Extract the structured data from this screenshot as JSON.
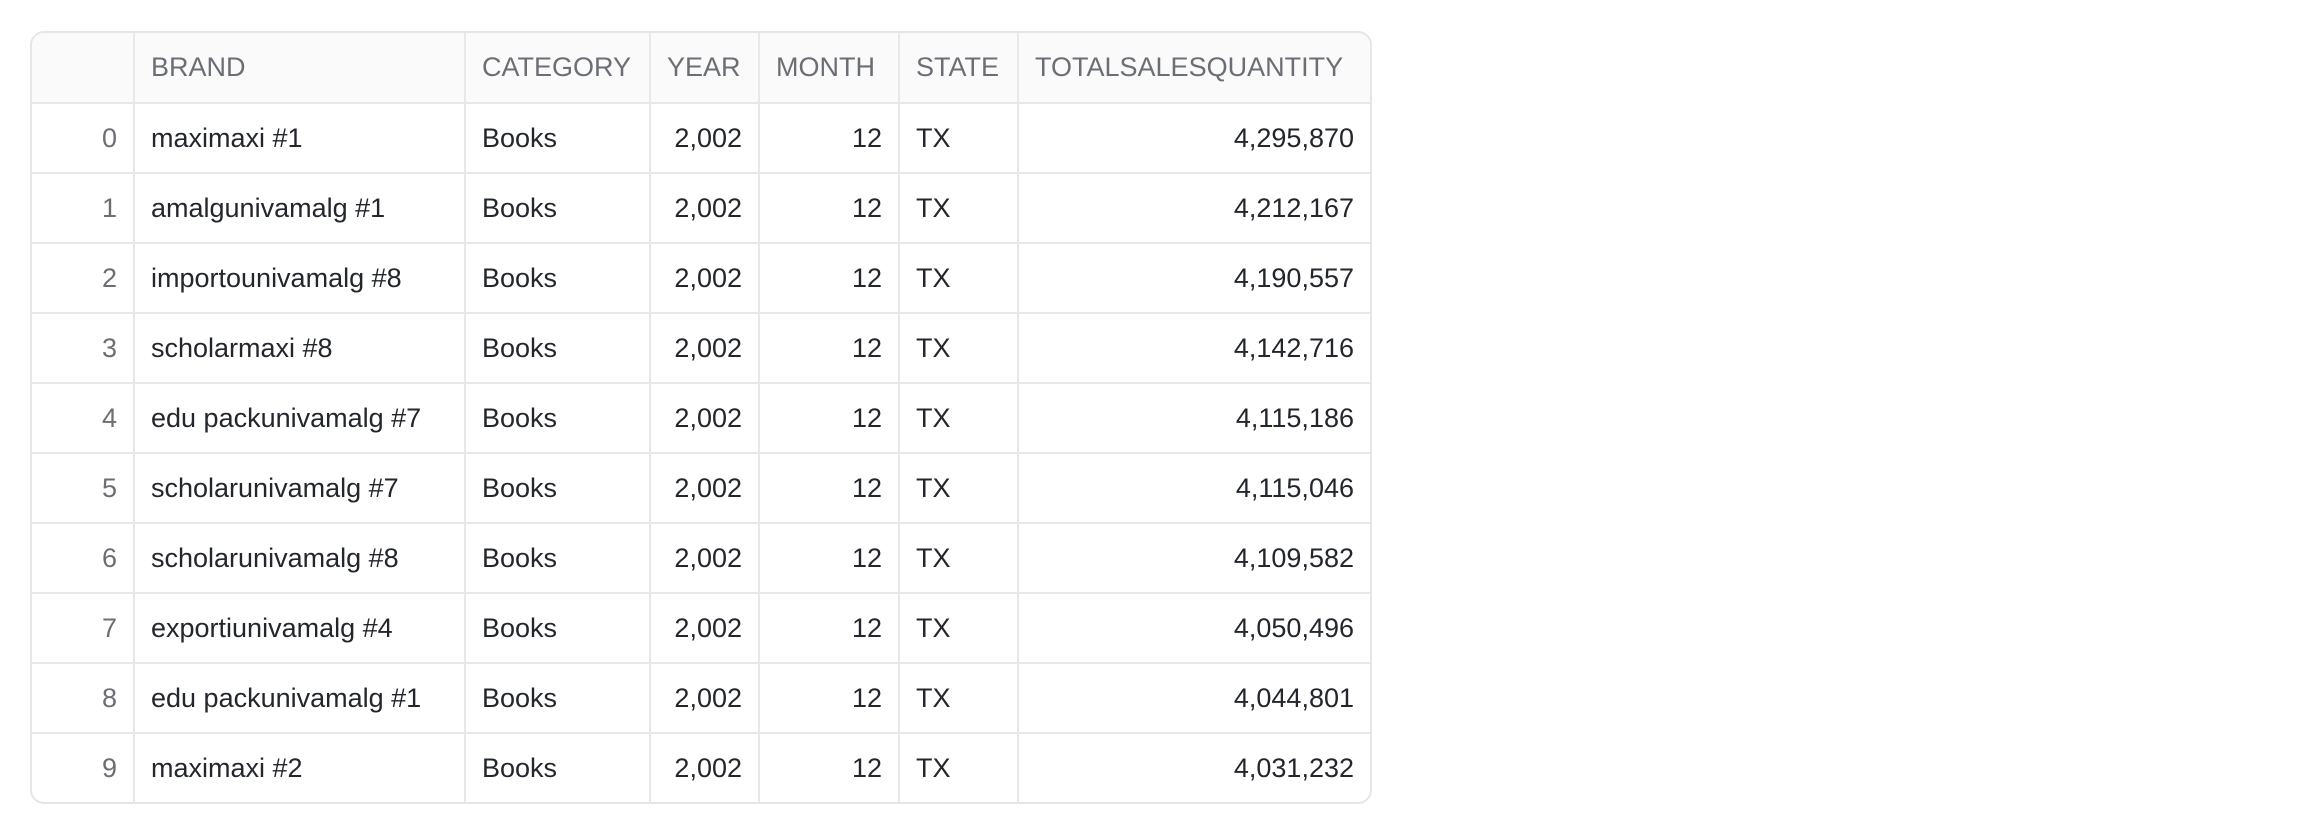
{
  "table": {
    "columns": [
      "",
      "BRAND",
      "CATEGORY",
      "YEAR",
      "MONTH",
      "STATE",
      "TOTALSALESQUANTITY"
    ],
    "rows": [
      {
        "index": "0",
        "brand": "maximaxi #1",
        "category": "Books",
        "year": "2,002",
        "month": "12",
        "state": "TX",
        "total": "4,295,870"
      },
      {
        "index": "1",
        "brand": "amalgunivamalg #1",
        "category": "Books",
        "year": "2,002",
        "month": "12",
        "state": "TX",
        "total": "4,212,167"
      },
      {
        "index": "2",
        "brand": "importounivamalg #8",
        "category": "Books",
        "year": "2,002",
        "month": "12",
        "state": "TX",
        "total": "4,190,557"
      },
      {
        "index": "3",
        "brand": "scholarmaxi #8",
        "category": "Books",
        "year": "2,002",
        "month": "12",
        "state": "TX",
        "total": "4,142,716"
      },
      {
        "index": "4",
        "brand": "edu packunivamalg #7",
        "category": "Books",
        "year": "2,002",
        "month": "12",
        "state": "TX",
        "total": "4,115,186"
      },
      {
        "index": "5",
        "brand": "scholarunivamalg #7",
        "category": "Books",
        "year": "2,002",
        "month": "12",
        "state": "TX",
        "total": "4,115,046"
      },
      {
        "index": "6",
        "brand": "scholarunivamalg #8",
        "category": "Books",
        "year": "2,002",
        "month": "12",
        "state": "TX",
        "total": "4,109,582"
      },
      {
        "index": "7",
        "brand": "exportiunivamalg #4",
        "category": "Books",
        "year": "2,002",
        "month": "12",
        "state": "TX",
        "total": "4,050,496"
      },
      {
        "index": "8",
        "brand": "edu packunivamalg #1",
        "category": "Books",
        "year": "2,002",
        "month": "12",
        "state": "TX",
        "total": "4,044,801"
      },
      {
        "index": "9",
        "brand": "maximaxi #2",
        "category": "Books",
        "year": "2,002",
        "month": "12",
        "state": "TX",
        "total": "4,031,232"
      }
    ]
  }
}
